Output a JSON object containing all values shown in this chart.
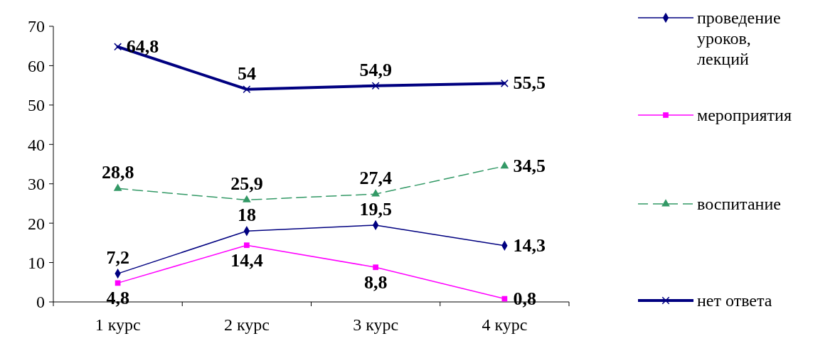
{
  "chart_data": {
    "type": "line",
    "categories": [
      "1 курс",
      "2 курс",
      "3 курс",
      "4 курс"
    ],
    "ylim": [
      0,
      70
    ],
    "yticks": [
      0,
      10,
      20,
      30,
      40,
      50,
      60,
      70
    ],
    "grid": false,
    "legend": "right",
    "series": [
      {
        "name": "проведение уроков, лекций",
        "color": "#000080",
        "marker": "diamond",
        "line_style": "solid",
        "values": [
          7.2,
          18,
          19.5,
          14.3
        ],
        "value_labels": [
          "7,2",
          "18",
          "19,5",
          "14,3"
        ]
      },
      {
        "name": "мероприятия",
        "color": "#ff00ff",
        "marker": "square",
        "line_style": "solid",
        "values": [
          4.8,
          14.4,
          8.8,
          0.8
        ],
        "value_labels": [
          "4,8",
          "14,4",
          "8,8",
          "0,8"
        ]
      },
      {
        "name": "воспитание",
        "color": "#339966",
        "marker": "triangle",
        "line_style": "dashed",
        "values": [
          28.8,
          25.9,
          27.4,
          34.5
        ],
        "value_labels": [
          "28,8",
          "25,9",
          "27,4",
          "34,5"
        ]
      },
      {
        "name": "нет ответа",
        "color": "#000080",
        "marker": "cross",
        "line_style": "solid",
        "values": [
          64.8,
          54,
          54.9,
          55.5
        ],
        "value_labels": [
          "64,8",
          "54",
          "54,9",
          "55,5"
        ]
      }
    ]
  }
}
